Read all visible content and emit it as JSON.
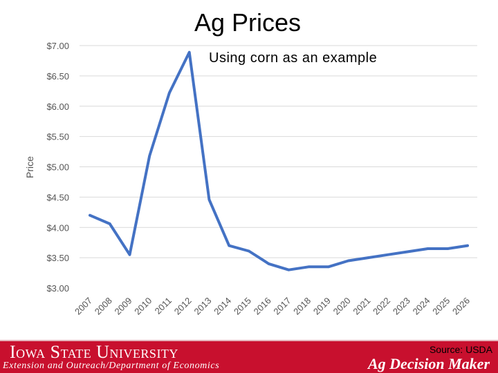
{
  "slide": {
    "title": "Ag Prices",
    "subtitle": "Using corn as an example"
  },
  "chart_data": {
    "type": "line",
    "title": "",
    "xlabel": "",
    "ylabel": "Price",
    "x": [
      "2007",
      "2008",
      "2009",
      "2010",
      "2011",
      "2012",
      "2013",
      "2014",
      "2015",
      "2016",
      "2017",
      "2018",
      "2019",
      "2020",
      "2021",
      "2022",
      "2023",
      "2024",
      "2025",
      "2026"
    ],
    "ytick_labels": [
      "$7.00",
      "$6.50",
      "$6.00",
      "$5.50",
      "$5.00",
      "$4.50",
      "$4.00",
      "$3.50",
      "$3.00"
    ],
    "ylim": [
      3.0,
      7.0
    ],
    "grid": true,
    "series": [
      {
        "values": [
          4.2,
          4.06,
          3.55,
          5.18,
          6.22,
          6.89,
          4.46,
          3.7,
          3.61,
          3.4,
          3.3,
          3.35,
          3.35,
          3.45,
          3.5,
          3.55,
          3.6,
          3.65,
          3.65,
          3.7
        ],
        "color": "#4472c4"
      }
    ]
  },
  "footer": {
    "university": "Iowa State University",
    "department": "Extension and Outreach/Department of Economics",
    "source": "Source: USDA",
    "brand": "Ag Decision Maker",
    "bar_color": "#c8102e"
  }
}
